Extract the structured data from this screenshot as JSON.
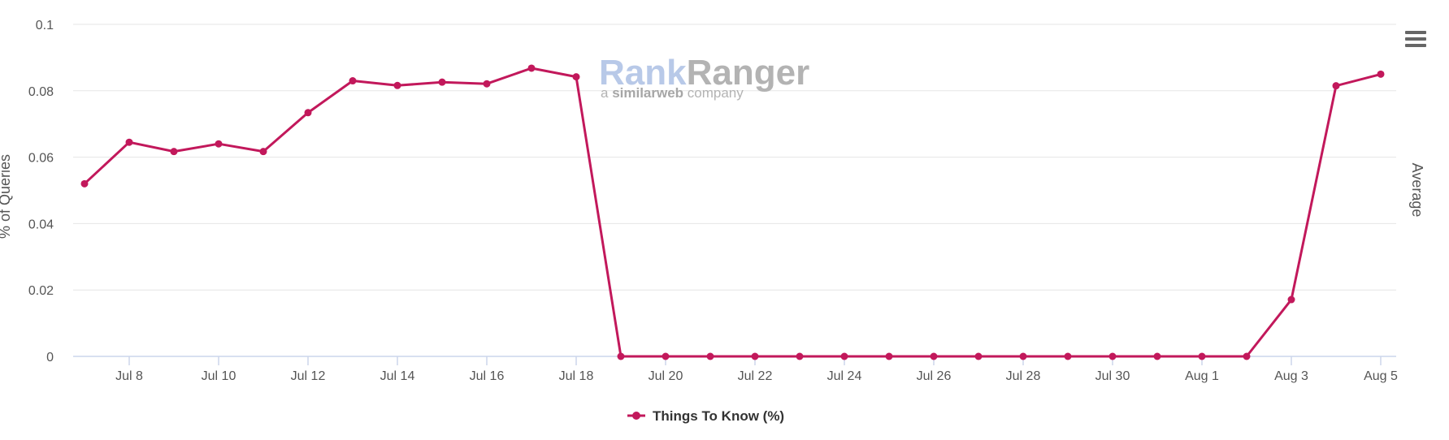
{
  "watermark": {
    "word1": "Rank",
    "word2": "Ranger",
    "sub_prefix": "a ",
    "sub_brand": "similarweb",
    "sub_suffix": " company"
  },
  "menu": {
    "icon": "hamburger-menu-icon"
  },
  "colors": {
    "series": "#c2185b",
    "grid": "#e6e6e6",
    "axis": "#ccd6eb",
    "watermark_blue": "#b8c9e8",
    "watermark_gray": "#b3b3b3"
  },
  "chart_data": {
    "type": "line",
    "title": "",
    "xlabel": "",
    "ylabel": "% of Queries",
    "ylabel_right": "Average",
    "ylim": [
      0,
      0.1
    ],
    "yticks": [
      "0",
      "0.02",
      "0.04",
      "0.06",
      "0.08",
      "0.1"
    ],
    "ytick_values": [
      0,
      0.02,
      0.04,
      0.06,
      0.08,
      0.1
    ],
    "grid": true,
    "legend_position": "bottom-center",
    "x": [
      "Jul 7",
      "Jul 8",
      "Jul 9",
      "Jul 10",
      "Jul 11",
      "Jul 12",
      "Jul 13",
      "Jul 14",
      "Jul 15",
      "Jul 16",
      "Jul 17",
      "Jul 18",
      "Jul 19",
      "Jul 20",
      "Jul 21",
      "Jul 22",
      "Jul 23",
      "Jul 24",
      "Jul 25",
      "Jul 26",
      "Jul 27",
      "Jul 28",
      "Jul 29",
      "Jul 30",
      "Jul 31",
      "Aug 1",
      "Aug 2",
      "Aug 3",
      "Aug 4",
      "Aug 5"
    ],
    "xtick_labels": [
      "Jul 8",
      "Jul 10",
      "Jul 12",
      "Jul 14",
      "Jul 16",
      "Jul 18",
      "Jul 20",
      "Jul 22",
      "Jul 24",
      "Jul 26",
      "Jul 28",
      "Jul 30",
      "Aug 1",
      "Aug 3",
      "Aug 5"
    ],
    "series": [
      {
        "name": "Things To Know (%)",
        "values": [
          0.052,
          0.0645,
          0.0617,
          0.064,
          0.0617,
          0.0734,
          0.083,
          0.0816,
          0.0826,
          0.0821,
          0.0868,
          0.0842,
          0,
          0,
          0,
          0,
          0,
          0,
          0,
          0,
          0,
          0,
          0,
          0,
          0,
          0,
          0,
          0.0171,
          0.0815,
          0.085
        ]
      }
    ]
  }
}
